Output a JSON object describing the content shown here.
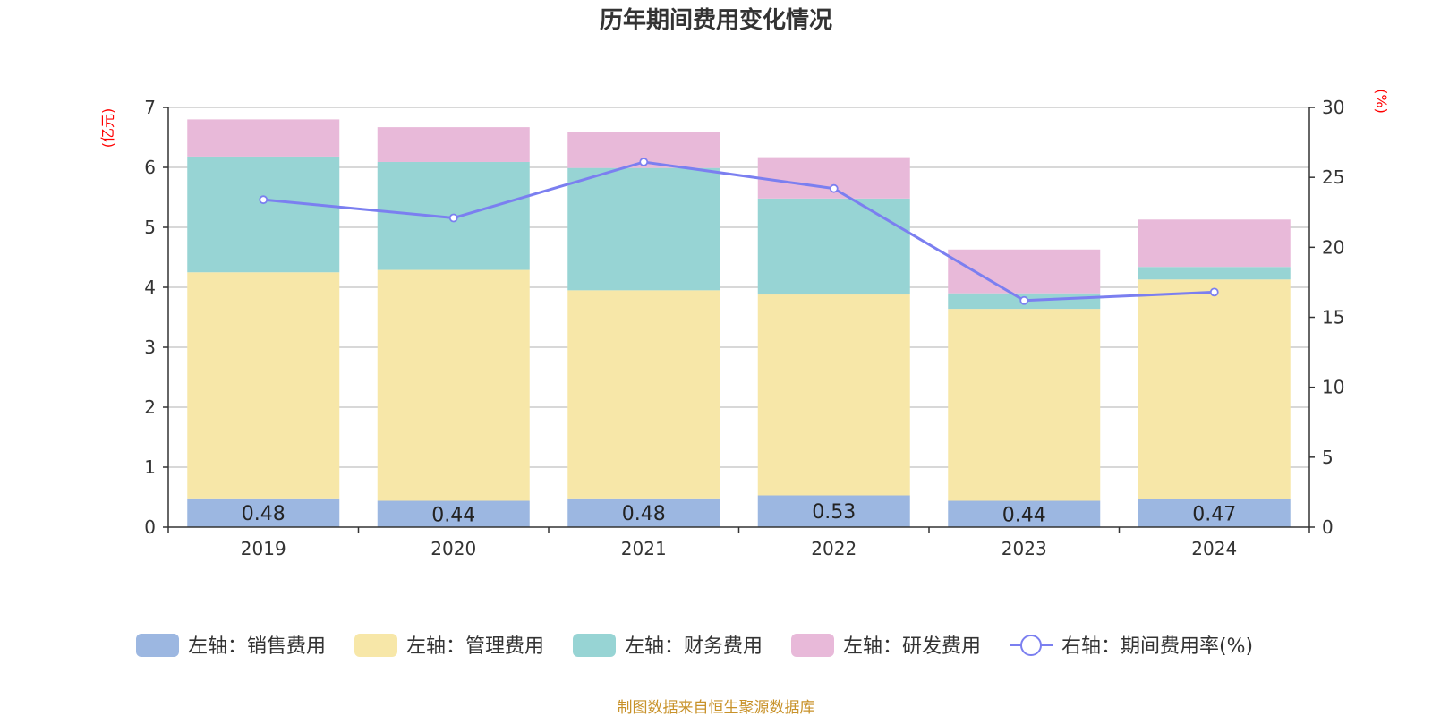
{
  "chart_data": {
    "type": "bar",
    "stacked": true,
    "title": "历年期间费用变化情况",
    "categories": [
      "2019",
      "2020",
      "2021",
      "2022",
      "2023",
      "2024"
    ],
    "y_left": {
      "unit": "(亿元)",
      "min": 0,
      "max": 7,
      "ticks": [
        "0",
        "1",
        "2",
        "3",
        "4",
        "5",
        "6",
        "7"
      ],
      "unit_color": "#ff0000"
    },
    "y_right": {
      "unit": "(%)",
      "min": 0,
      "max": 30,
      "ticks": [
        "0",
        "5",
        "10",
        "15",
        "20",
        "25",
        "30"
      ],
      "unit_color": "#ff0000"
    },
    "series": [
      {
        "name": "左轴：销售费用",
        "type": "bar",
        "axis": "left",
        "color": "#9cb7e1",
        "values": [
          0.48,
          0.44,
          0.48,
          0.53,
          0.44,
          0.47
        ],
        "labels": [
          "0.48",
          "0.44",
          "0.48",
          "0.53",
          "0.44",
          "0.47"
        ]
      },
      {
        "name": "左轴：管理费用",
        "type": "bar",
        "axis": "left",
        "color": "#f7e7a8",
        "values": [
          3.77,
          3.85,
          3.47,
          3.35,
          3.2,
          3.66
        ]
      },
      {
        "name": "左轴：财务费用",
        "type": "bar",
        "axis": "left",
        "color": "#97d4d4",
        "values": [
          1.93,
          1.8,
          2.04,
          1.6,
          0.26,
          0.21
        ]
      },
      {
        "name": "左轴：研发费用",
        "type": "bar",
        "axis": "left",
        "color": "#e8b9d9",
        "values": [
          0.62,
          0.58,
          0.6,
          0.69,
          0.73,
          0.79
        ]
      },
      {
        "name": "右轴：期间费用率(%)",
        "type": "line",
        "axis": "right",
        "color": "#7b7ff0",
        "values": [
          23.4,
          22.1,
          26.1,
          24.2,
          16.2,
          16.8
        ]
      }
    ],
    "legend_position": "bottom",
    "grid": true
  },
  "source": "制图数据来自恒生聚源数据库",
  "source_color": "#c8922a"
}
